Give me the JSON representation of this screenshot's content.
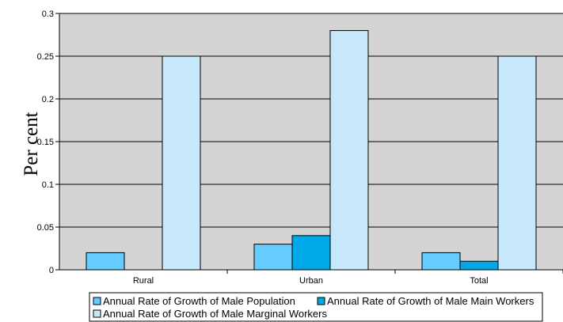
{
  "chart_data": {
    "type": "bar",
    "title": "",
    "xlabel": "",
    "ylabel": "Per cent",
    "categories": [
      "Rural",
      "Urban",
      "Total"
    ],
    "ylim": [
      0,
      0.3
    ],
    "yticks": [
      "0",
      "0.05",
      "0.1",
      "0.15",
      "0.2",
      "0.25",
      "0.3"
    ],
    "grid": true,
    "legend_position": "bottom",
    "plot_background": "#d4d4d4",
    "series": [
      {
        "name": "Annual Rate of Growth of Male Population",
        "values": [
          0.02,
          0.03,
          0.02
        ],
        "color": "#66ccff"
      },
      {
        "name": "Annual Rate of Growth of Male Main Workers",
        "values": [
          0,
          0.04,
          0.01
        ],
        "color": "#00a8e8"
      },
      {
        "name": "Annual Rate of Growth of Male Marginal Workers",
        "values": [
          0.25,
          0.28,
          0.25
        ],
        "color": "#c6e8fa"
      }
    ]
  }
}
